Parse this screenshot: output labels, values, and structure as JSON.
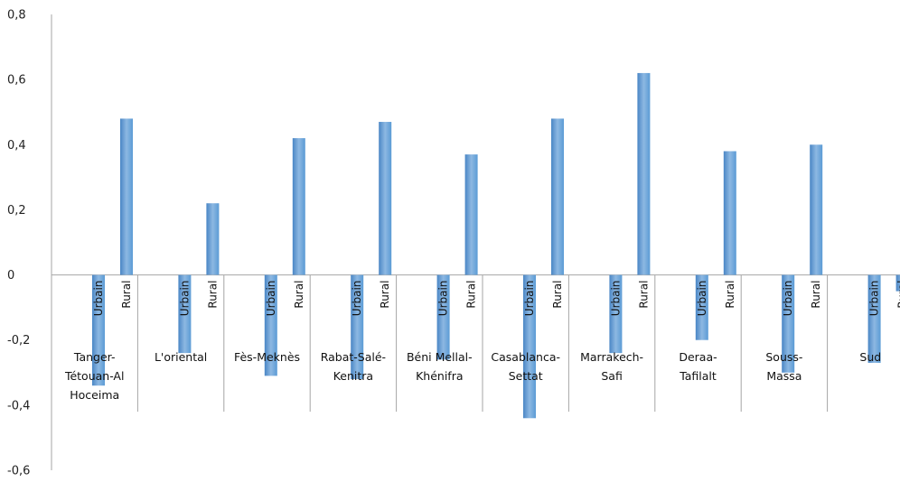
{
  "chart_data": {
    "type": "bar",
    "categories": [
      [
        "Tanger-",
        "Tétouan-Al",
        "Hoceima"
      ],
      [
        "L'oriental"
      ],
      [
        "Fès-Meknès"
      ],
      [
        "Rabat-Salé-",
        "Kenitra"
      ],
      [
        "Béni Mellal-",
        "Khénifra"
      ],
      [
        "Casablanca-",
        "Settat"
      ],
      [
        "Marrakech-",
        "Safi"
      ],
      [
        "Deraa-",
        "Tafilalt"
      ],
      [
        "Souss-",
        "Massa"
      ],
      [
        "Sud"
      ]
    ],
    "subcategories": [
      "Urbain",
      "Rural"
    ],
    "values": [
      [
        -0.34,
        0.48
      ],
      [
        -0.24,
        0.22
      ],
      [
        -0.31,
        0.42
      ],
      [
        -0.32,
        0.47
      ],
      [
        -0.26,
        0.37
      ],
      [
        -0.44,
        0.48
      ],
      [
        -0.24,
        0.62
      ],
      [
        -0.2,
        0.38
      ],
      [
        -0.3,
        0.4
      ],
      [
        -0.27,
        -0.05
      ]
    ],
    "ylim": [
      -0.6,
      0.8
    ],
    "yticks": [
      "-0,6",
      "-0,4",
      "-0,2",
      "0",
      "0,2",
      "0,4",
      "0,6",
      "0,8"
    ],
    "ytick_values": [
      -0.6,
      -0.4,
      -0.2,
      0,
      0.2,
      0.4,
      0.6,
      0.8
    ],
    "grid": false,
    "legend": "none",
    "bar_color": "#5b9bd5",
    "bar_color_light": "#8db8e2",
    "bar_color_dark": "#4a86c5"
  }
}
